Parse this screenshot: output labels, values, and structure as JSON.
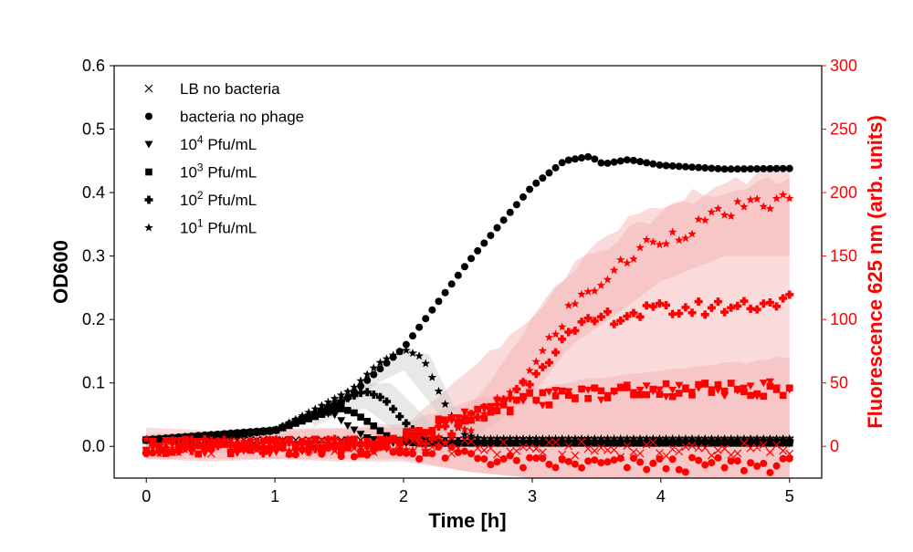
{
  "chart_data": {
    "type": "scatter",
    "title": "",
    "xlabel": "Time [h]",
    "ylabel": "OD600",
    "y2label": "Fluorescence 625 nm (arb. units)",
    "xlim": [
      -0.25,
      5.25
    ],
    "ylim": [
      -0.05,
      0.6
    ],
    "y2lim": [
      -25,
      300
    ],
    "x_ticks": [
      "0",
      "1",
      "2",
      "3",
      "4",
      "5"
    ],
    "y_ticks": [
      "0.0",
      "0.1",
      "0.2",
      "0.3",
      "0.4",
      "0.5",
      "0.6"
    ],
    "y2_ticks": [
      "0",
      "50",
      "100",
      "150",
      "200",
      "250",
      "300"
    ],
    "legend_position": "top-left",
    "grid": false,
    "colors": {
      "od": "#000000",
      "fluorescence": "#ff0000",
      "band": "#f4b0b0",
      "od_band": "#cccccc"
    },
    "legend": [
      {
        "marker": "x",
        "label": "LB no bacteria",
        "exp": ""
      },
      {
        "marker": "circle",
        "label": "bacteria no phage",
        "exp": ""
      },
      {
        "marker": "triangle-down",
        "label": "Pfu/mL",
        "base": "10",
        "exp": "4"
      },
      {
        "marker": "square",
        "label": "Pfu/mL",
        "base": "10",
        "exp": "3"
      },
      {
        "marker": "plus",
        "label": "Pfu/mL",
        "base": "10",
        "exp": "2"
      },
      {
        "marker": "star",
        "label": "Pfu/mL",
        "base": "10",
        "exp": "1"
      }
    ],
    "time_range": [
      0,
      5
    ],
    "points_per_series": 100,
    "od_series": [
      {
        "marker": "x",
        "knots_t": [
          0,
          5
        ],
        "knots_v": [
          0.01,
          0.01
        ]
      },
      {
        "marker": "circle",
        "knots_t": [
          0,
          0.5,
          1.0,
          1.5,
          2.0,
          2.5,
          3.0,
          3.25,
          3.45,
          3.55,
          3.75,
          4.0,
          4.5,
          5.0
        ],
        "knots_v": [
          0.01,
          0.013,
          0.025,
          0.065,
          0.155,
          0.29,
          0.41,
          0.45,
          0.457,
          0.445,
          0.452,
          0.443,
          0.437,
          0.438
        ]
      },
      {
        "marker": "triangle-down",
        "knots_t": [
          0,
          1.0,
          1.3,
          1.45,
          1.55,
          1.7,
          1.85,
          2.0,
          5.0
        ],
        "knots_v": [
          0.01,
          0.025,
          0.05,
          0.052,
          0.035,
          0.015,
          0.006,
          0.005,
          0.005
        ]
      },
      {
        "marker": "square",
        "knots_t": [
          0,
          1.0,
          1.5,
          1.6,
          1.75,
          1.9,
          2.1,
          5.0
        ],
        "knots_v": [
          0.01,
          0.025,
          0.06,
          0.055,
          0.035,
          0.012,
          0.005,
          0.005
        ]
      },
      {
        "marker": "plus",
        "knots_t": [
          0,
          1.0,
          1.55,
          1.7,
          1.85,
          2.0,
          2.15,
          2.3,
          5.0
        ],
        "knots_v": [
          0.01,
          0.025,
          0.075,
          0.087,
          0.075,
          0.04,
          0.012,
          0.008,
          0.009
        ]
      },
      {
        "marker": "star",
        "knots_t": [
          0,
          1.0,
          1.6,
          1.8,
          2.0,
          2.15,
          2.3,
          2.45,
          2.6,
          5.0
        ],
        "knots_v": [
          0.01,
          0.025,
          0.09,
          0.13,
          0.153,
          0.14,
          0.075,
          0.02,
          0.012,
          0.012
        ]
      }
    ],
    "fluorescence_series": [
      {
        "marker": "x",
        "knots_t": [
          0,
          2.0,
          3.0,
          5.0
        ],
        "knots_v": [
          0,
          0,
          -2,
          -3
        ]
      },
      {
        "marker": "circle",
        "knots_t": [
          0,
          1.5,
          2.5,
          2.8,
          3.0,
          5.0
        ],
        "knots_v": [
          0,
          -2,
          -7,
          -12,
          -14,
          -15
        ]
      },
      {
        "marker": "triangle-down",
        "knots_t": [
          0,
          1.8,
          2.2,
          2.5,
          3.0,
          3.5,
          4.0,
          5.0
        ],
        "knots_v": [
          0,
          0,
          15,
          27,
          37,
          42,
          45,
          45
        ]
      },
      {
        "marker": "square",
        "knots_t": [
          0,
          1.8,
          2.3,
          2.7,
          3.0,
          3.5,
          4.0,
          5.0
        ],
        "knots_v": [
          0,
          0,
          18,
          30,
          37,
          42,
          45,
          45
        ]
      },
      {
        "marker": "plus",
        "knots_t": [
          0,
          2.0,
          2.5,
          2.9,
          3.2,
          3.5,
          3.8,
          4.0,
          4.5,
          5.0
        ],
        "knots_v": [
          0,
          0,
          20,
          45,
          80,
          100,
          105,
          107,
          110,
          115
        ]
      },
      {
        "marker": "star",
        "knots_t": [
          0,
          2.2,
          2.6,
          3.0,
          3.3,
          3.6,
          3.9,
          4.2,
          4.5,
          5.0
        ],
        "knots_v": [
          0,
          0,
          20,
          60,
          110,
          135,
          160,
          170,
          185,
          195
        ]
      }
    ],
    "fluorescence_bands": [
      {
        "knots_t": [
          0,
          0.5,
          1.0,
          1.5,
          2.0,
          2.5,
          3.0,
          3.5,
          4.0,
          4.5,
          5.0
        ],
        "low": [
          -10,
          -12,
          -10,
          -12,
          -12,
          -20,
          -25,
          -25,
          -25,
          -25,
          -25
        ],
        "high": [
          15,
          12,
          14,
          15,
          18,
          35,
          45,
          55,
          60,
          65,
          70
        ]
      },
      {
        "knots_t": [
          0,
          2.0,
          2.5,
          3.0,
          3.3,
          3.6,
          4.0,
          4.5,
          5.0
        ],
        "low": [
          -10,
          -10,
          -20,
          -25,
          -25,
          -25,
          -25,
          -25,
          -25
        ],
        "high": [
          10,
          15,
          60,
          100,
          140,
          170,
          190,
          210,
          218
        ]
      },
      {
        "knots_t": [
          0,
          2.2,
          2.6,
          3.0,
          3.3,
          3.6,
          4.0,
          4.5,
          5.0
        ],
        "low": [
          -5,
          -5,
          10,
          40,
          80,
          100,
          130,
          150,
          150
        ],
        "high": [
          5,
          10,
          40,
          100,
          140,
          160,
          185,
          200,
          215
        ]
      }
    ],
    "od_bands": [
      {
        "knots_t": [
          1.3,
          1.5,
          1.7,
          1.9,
          2.1,
          2.3
        ],
        "low": [
          0.03,
          0.05,
          0.06,
          0.03,
          0.01,
          0.005
        ],
        "high": [
          0.05,
          0.085,
          0.1,
          0.1,
          0.06,
          0.02
        ]
      },
      {
        "knots_t": [
          1.6,
          1.8,
          2.0,
          2.2,
          2.4,
          2.6
        ],
        "low": [
          0.07,
          0.1,
          0.12,
          0.07,
          0.015,
          0.008
        ],
        "high": [
          0.09,
          0.13,
          0.155,
          0.145,
          0.06,
          0.02
        ]
      }
    ]
  }
}
